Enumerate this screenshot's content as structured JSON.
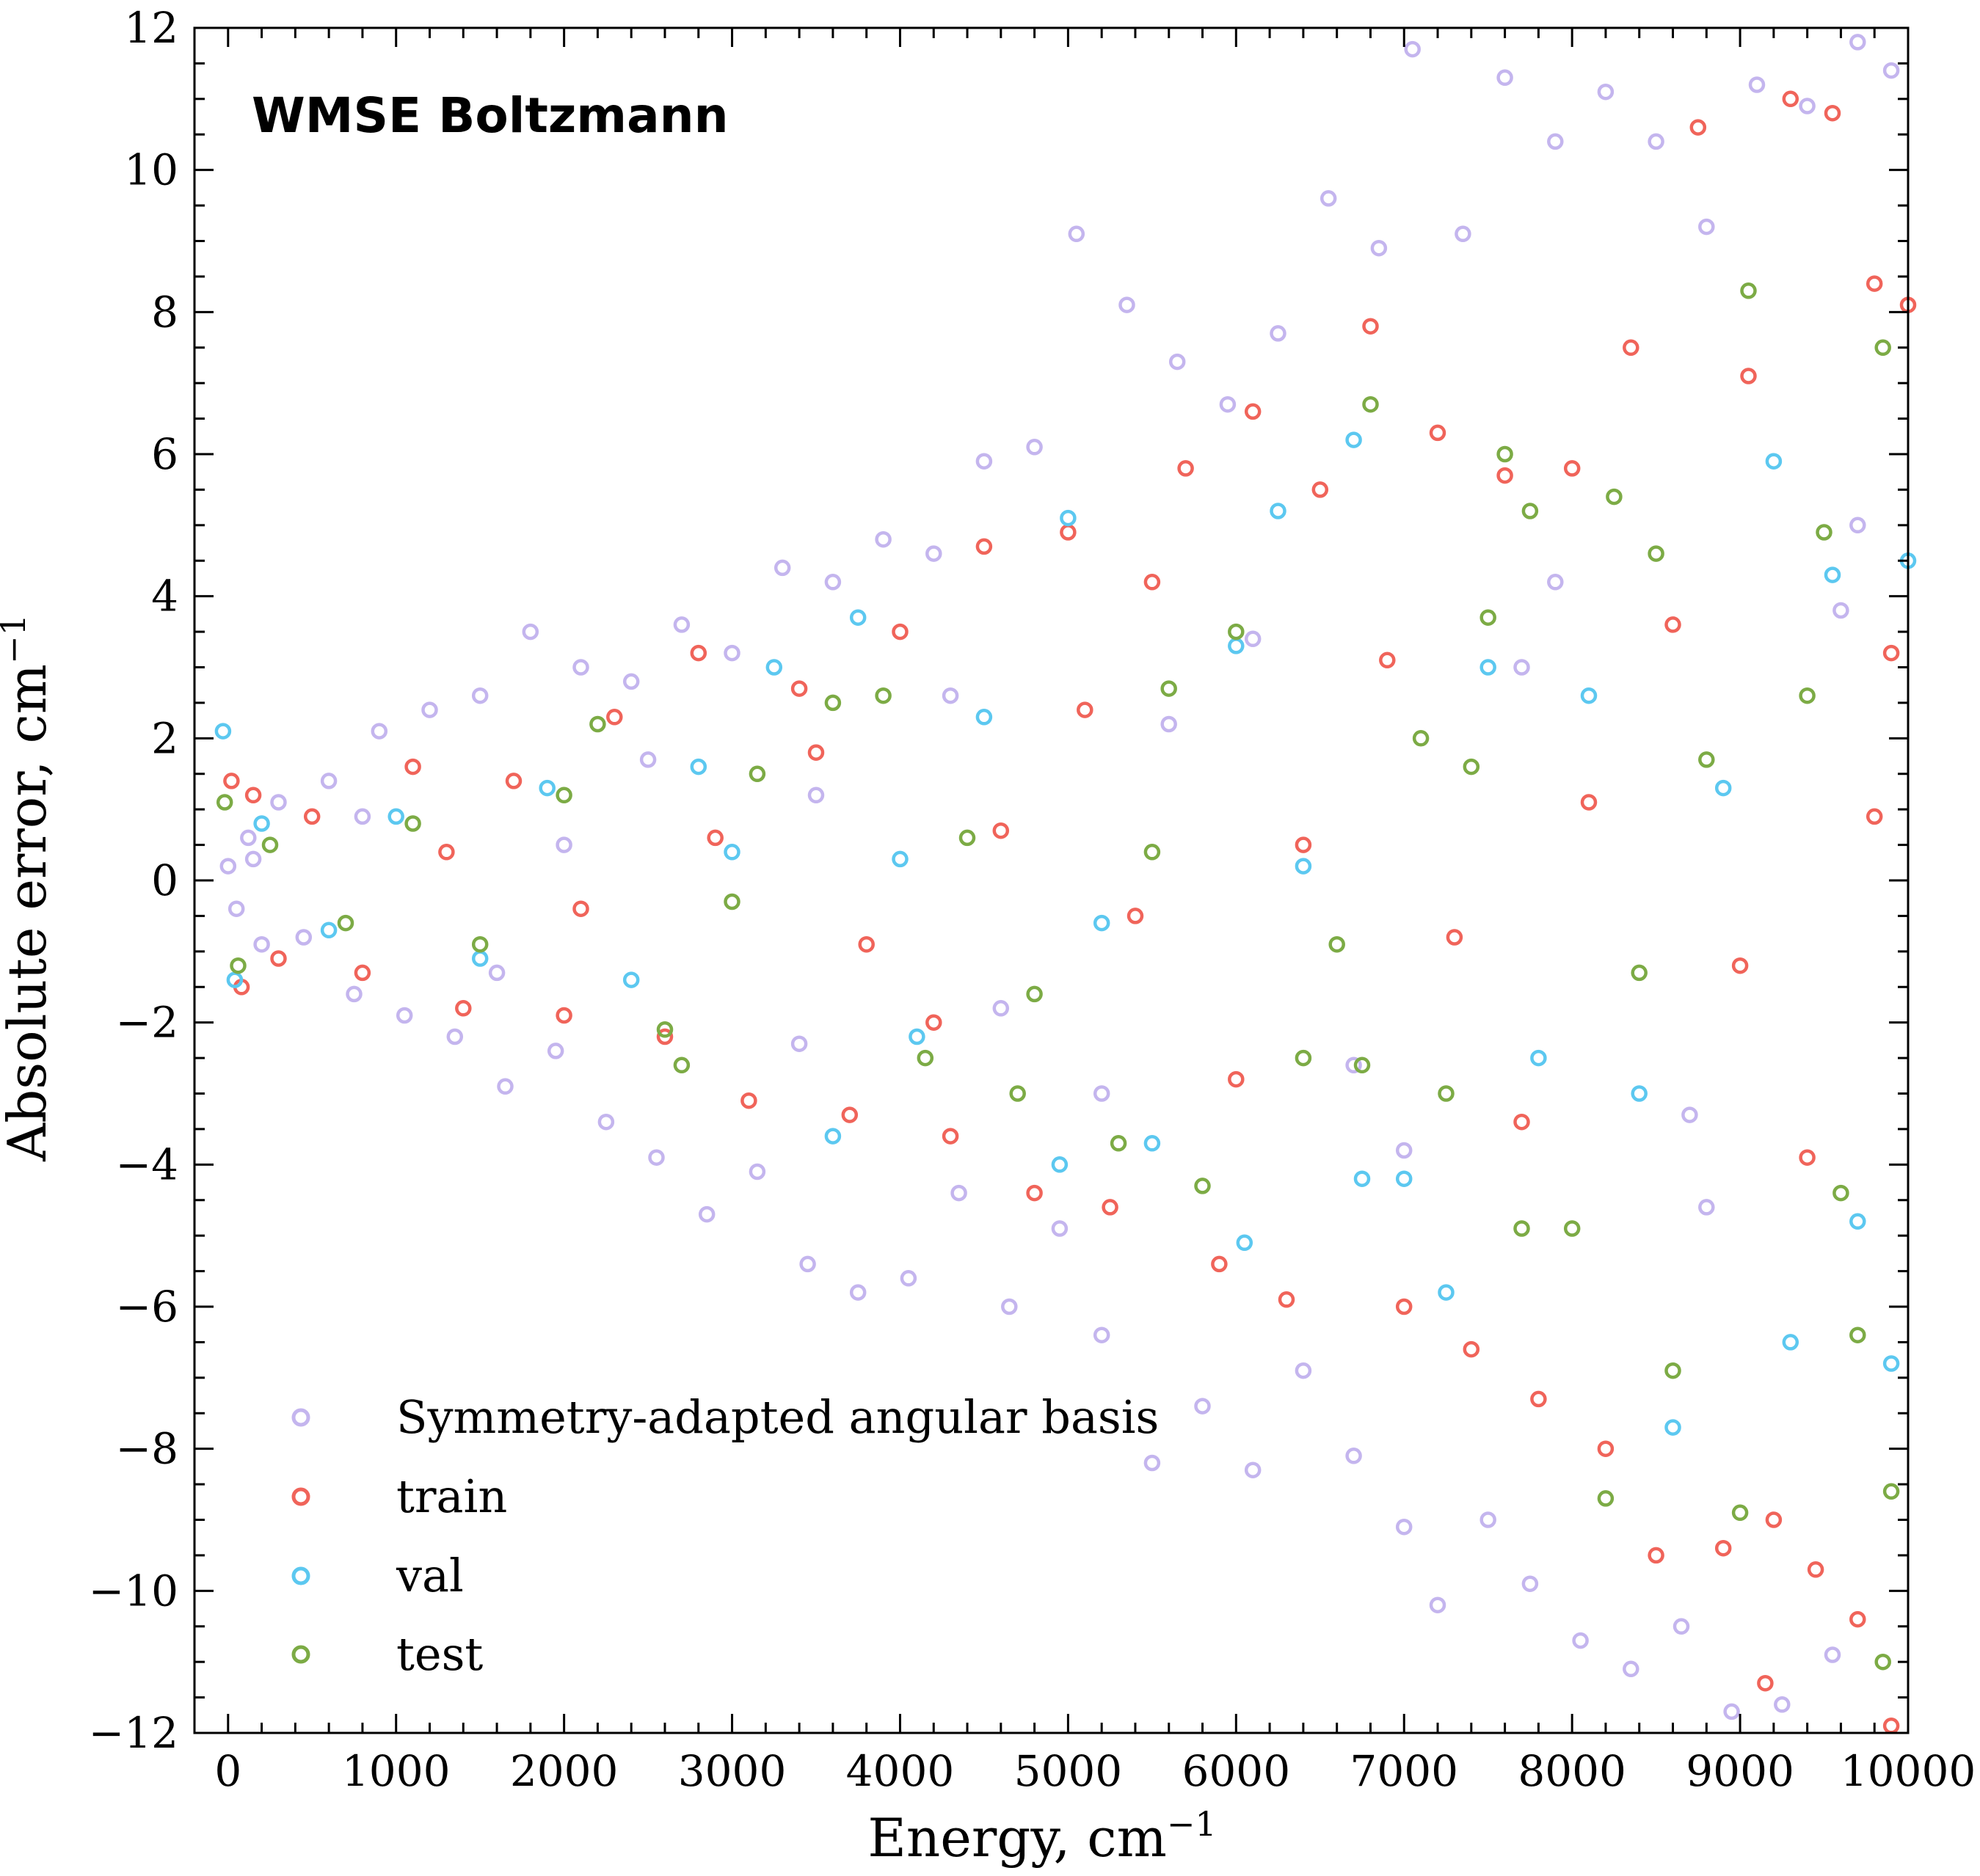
{
  "chart_data": {
    "type": "scatter",
    "title": "WMSE Boltzmann",
    "xlabel": "Energy, cm",
    "xlabel_sup": "−1",
    "ylabel": "Absolute error, cm",
    "ylabel_sup": "−1",
    "xlim": [
      -200,
      10000
    ],
    "ylim": [
      -12,
      12
    ],
    "xticks": [
      0,
      1000,
      2000,
      3000,
      4000,
      5000,
      6000,
      7000,
      8000,
      9000,
      10000
    ],
    "xtick_labels": [
      "0",
      "1000",
      "2000",
      "3000",
      "4000",
      "5000",
      "6000",
      "7000",
      "8000",
      "9000",
      "10000"
    ],
    "yticks": [
      -12,
      -10,
      -8,
      -6,
      -4,
      -2,
      0,
      2,
      4,
      6,
      8,
      10,
      12
    ],
    "ytick_labels": [
      "−12",
      "−10",
      "−8",
      "−6",
      "−4",
      "−2",
      "0",
      "2",
      "4",
      "6",
      "8",
      "10",
      "12"
    ],
    "grid": false,
    "legend_position": "bottom-left",
    "series": [
      {
        "name": "Symmetry-adapted angular basis",
        "color": "#c4b5ee",
        "points": [
          [
            0,
            0.2
          ],
          [
            50,
            -0.4
          ],
          [
            120,
            0.6
          ],
          [
            200,
            -0.9
          ],
          [
            300,
            1.1
          ],
          [
            450,
            -0.8
          ],
          [
            600,
            1.4
          ],
          [
            750,
            -1.6
          ],
          [
            900,
            2.1
          ],
          [
            1050,
            -1.9
          ],
          [
            1200,
            2.4
          ],
          [
            1350,
            -2.2
          ],
          [
            1500,
            2.6
          ],
          [
            1650,
            -2.9
          ],
          [
            1800,
            3.5
          ],
          [
            1950,
            -2.4
          ],
          [
            2100,
            3.0
          ],
          [
            2250,
            -3.4
          ],
          [
            2400,
            2.8
          ],
          [
            2550,
            -3.9
          ],
          [
            2700,
            3.6
          ],
          [
            2850,
            -4.7
          ],
          [
            3000,
            3.2
          ],
          [
            3150,
            -4.1
          ],
          [
            3300,
            4.4
          ],
          [
            3450,
            -5.4
          ],
          [
            3600,
            4.2
          ],
          [
            3750,
            -5.8
          ],
          [
            3900,
            4.8
          ],
          [
            4050,
            -5.6
          ],
          [
            4200,
            4.6
          ],
          [
            4350,
            -4.4
          ],
          [
            4500,
            5.9
          ],
          [
            4650,
            -6.0
          ],
          [
            4800,
            6.1
          ],
          [
            4950,
            -4.9
          ],
          [
            5050,
            9.1
          ],
          [
            5200,
            -6.4
          ],
          [
            5350,
            8.1
          ],
          [
            5500,
            -8.2
          ],
          [
            5650,
            7.3
          ],
          [
            5800,
            -7.4
          ],
          [
            5950,
            6.7
          ],
          [
            6100,
            -8.3
          ],
          [
            6250,
            7.7
          ],
          [
            6400,
            -6.9
          ],
          [
            6550,
            9.6
          ],
          [
            6700,
            -8.1
          ],
          [
            6850,
            8.9
          ],
          [
            7000,
            -9.1
          ],
          [
            7050,
            11.7
          ],
          [
            7200,
            -10.2
          ],
          [
            7350,
            9.1
          ],
          [
            7500,
            -9.0
          ],
          [
            7600,
            11.3
          ],
          [
            7750,
            -9.9
          ],
          [
            7900,
            10.4
          ],
          [
            8050,
            -10.7
          ],
          [
            8200,
            11.1
          ],
          [
            8350,
            -11.1
          ],
          [
            8500,
            10.4
          ],
          [
            8650,
            -10.5
          ],
          [
            8800,
            9.2
          ],
          [
            8950,
            -11.7
          ],
          [
            9100,
            11.2
          ],
          [
            9250,
            -11.6
          ],
          [
            9400,
            10.9
          ],
          [
            9550,
            -10.9
          ],
          [
            9700,
            11.8
          ],
          [
            9900,
            11.4
          ],
          [
            150,
            0.3
          ],
          [
            800,
            0.9
          ],
          [
            1600,
            -1.3
          ],
          [
            2500,
            1.7
          ],
          [
            3400,
            -2.3
          ],
          [
            4300,
            2.6
          ],
          [
            5200,
            -3.0
          ],
          [
            6100,
            3.4
          ],
          [
            7000,
            -3.8
          ],
          [
            7900,
            4.2
          ],
          [
            8800,
            -4.6
          ],
          [
            9700,
            5.0
          ],
          [
            3500,
            1.2
          ],
          [
            4600,
            -1.8
          ],
          [
            5600,
            2.2
          ],
          [
            6700,
            -2.6
          ],
          [
            7700,
            3.0
          ],
          [
            8700,
            -3.3
          ],
          [
            9600,
            3.8
          ],
          [
            2000,
            0.5
          ]
        ]
      },
      {
        "name": "train",
        "color": "#f0645a",
        "points": [
          [
            20,
            1.4
          ],
          [
            80,
            -1.5
          ],
          [
            150,
            1.2
          ],
          [
            300,
            -1.1
          ],
          [
            500,
            0.9
          ],
          [
            800,
            -1.3
          ],
          [
            1100,
            1.6
          ],
          [
            1400,
            -1.8
          ],
          [
            1700,
            1.4
          ],
          [
            2000,
            -1.9
          ],
          [
            2300,
            2.3
          ],
          [
            2600,
            -2.2
          ],
          [
            2800,
            3.2
          ],
          [
            3100,
            -3.1
          ],
          [
            3400,
            2.7
          ],
          [
            3700,
            -3.3
          ],
          [
            4000,
            3.5
          ],
          [
            4300,
            -3.6
          ],
          [
            4500,
            4.7
          ],
          [
            4800,
            -4.4
          ],
          [
            5000,
            4.9
          ],
          [
            5250,
            -4.6
          ],
          [
            5500,
            4.2
          ],
          [
            5700,
            5.8
          ],
          [
            5900,
            -5.4
          ],
          [
            6100,
            6.6
          ],
          [
            6300,
            -5.9
          ],
          [
            6500,
            5.5
          ],
          [
            6800,
            7.8
          ],
          [
            7000,
            -6.0
          ],
          [
            7200,
            6.3
          ],
          [
            7400,
            -6.6
          ],
          [
            7600,
            5.7
          ],
          [
            7800,
            -7.3
          ],
          [
            8000,
            5.8
          ],
          [
            8200,
            -8.0
          ],
          [
            8350,
            7.5
          ],
          [
            8500,
            -9.5
          ],
          [
            8750,
            10.6
          ],
          [
            8900,
            -9.4
          ],
          [
            9050,
            7.1
          ],
          [
            9200,
            -9.0
          ],
          [
            9300,
            11.0
          ],
          [
            9450,
            -9.7
          ],
          [
            9550,
            10.8
          ],
          [
            9700,
            -10.4
          ],
          [
            9800,
            8.4
          ],
          [
            9900,
            -11.9
          ],
          [
            10000,
            8.1
          ],
          [
            9150,
            -11.3
          ],
          [
            3500,
            1.8
          ],
          [
            4200,
            -2.0
          ],
          [
            5100,
            2.4
          ],
          [
            6000,
            -2.8
          ],
          [
            6900,
            3.1
          ],
          [
            7700,
            -3.4
          ],
          [
            8600,
            3.6
          ],
          [
            9400,
            -3.9
          ],
          [
            9900,
            3.2
          ],
          [
            6400,
            0.5
          ],
          [
            7300,
            -0.8
          ],
          [
            8100,
            1.1
          ],
          [
            9000,
            -1.2
          ],
          [
            9800,
            0.9
          ],
          [
            5400,
            -0.5
          ],
          [
            4600,
            0.7
          ],
          [
            3800,
            -0.9
          ],
          [
            2900,
            0.6
          ],
          [
            2100,
            -0.4
          ],
          [
            1300,
            0.4
          ]
        ]
      },
      {
        "name": "val",
        "color": "#5cc8f0",
        "points": [
          [
            -30,
            2.1
          ],
          [
            40,
            -1.4
          ],
          [
            200,
            0.8
          ],
          [
            600,
            -0.7
          ],
          [
            1000,
            0.9
          ],
          [
            1500,
            -1.1
          ],
          [
            1900,
            1.3
          ],
          [
            2400,
            -1.4
          ],
          [
            2800,
            1.6
          ],
          [
            3250,
            3.0
          ],
          [
            3600,
            -3.6
          ],
          [
            3750,
            3.7
          ],
          [
            4100,
            -2.2
          ],
          [
            4500,
            2.3
          ],
          [
            5000,
            5.1
          ],
          [
            4950,
            -4.0
          ],
          [
            5500,
            -3.7
          ],
          [
            6000,
            3.3
          ],
          [
            6250,
            5.2
          ],
          [
            6050,
            -5.1
          ],
          [
            6700,
            6.2
          ],
          [
            6750,
            -4.2
          ],
          [
            7000,
            -4.2
          ],
          [
            7250,
            -5.8
          ],
          [
            7500,
            3.0
          ],
          [
            7800,
            -2.5
          ],
          [
            8100,
            2.6
          ],
          [
            8400,
            -3.0
          ],
          [
            8600,
            -7.7
          ],
          [
            8900,
            1.3
          ],
          [
            9200,
            5.9
          ],
          [
            9300,
            -6.5
          ],
          [
            9550,
            4.3
          ],
          [
            9700,
            -4.8
          ],
          [
            9900,
            -6.8
          ],
          [
            10000,
            4.5
          ],
          [
            3000,
            0.4
          ],
          [
            4000,
            0.3
          ],
          [
            5200,
            -0.6
          ],
          [
            6400,
            0.2
          ]
        ]
      },
      {
        "name": "test",
        "color": "#7cab45",
        "points": [
          [
            -20,
            1.1
          ],
          [
            60,
            -1.2
          ],
          [
            250,
            0.5
          ],
          [
            700,
            -0.6
          ],
          [
            1100,
            0.8
          ],
          [
            1500,
            -0.9
          ],
          [
            2000,
            1.2
          ],
          [
            2200,
            2.2
          ],
          [
            2600,
            -2.1
          ],
          [
            2700,
            -2.6
          ],
          [
            3150,
            1.5
          ],
          [
            3600,
            2.5
          ],
          [
            3900,
            2.6
          ],
          [
            4150,
            -2.5
          ],
          [
            4700,
            -3.0
          ],
          [
            4800,
            -1.6
          ],
          [
            5300,
            -3.7
          ],
          [
            5600,
            2.7
          ],
          [
            5800,
            -4.3
          ],
          [
            6000,
            3.5
          ],
          [
            6400,
            -2.5
          ],
          [
            6800,
            6.7
          ],
          [
            6750,
            -2.6
          ],
          [
            7100,
            2.0
          ],
          [
            7250,
            -3.0
          ],
          [
            7500,
            3.7
          ],
          [
            7600,
            6.0
          ],
          [
            7700,
            -4.9
          ],
          [
            7750,
            5.2
          ],
          [
            8000,
            -4.9
          ],
          [
            8200,
            -8.7
          ],
          [
            8250,
            5.4
          ],
          [
            8500,
            4.6
          ],
          [
            8600,
            -6.9
          ],
          [
            8800,
            1.7
          ],
          [
            9000,
            -8.9
          ],
          [
            9050,
            8.3
          ],
          [
            9400,
            2.6
          ],
          [
            9600,
            -4.4
          ],
          [
            9850,
            7.5
          ],
          [
            9850,
            -11.0
          ],
          [
            9900,
            -8.6
          ],
          [
            9700,
            -6.4
          ],
          [
            9500,
            4.9
          ],
          [
            3000,
            -0.3
          ],
          [
            4400,
            0.6
          ],
          [
            5500,
            0.4
          ],
          [
            6600,
            -0.9
          ],
          [
            7400,
            1.6
          ],
          [
            8400,
            -1.3
          ]
        ]
      }
    ]
  }
}
